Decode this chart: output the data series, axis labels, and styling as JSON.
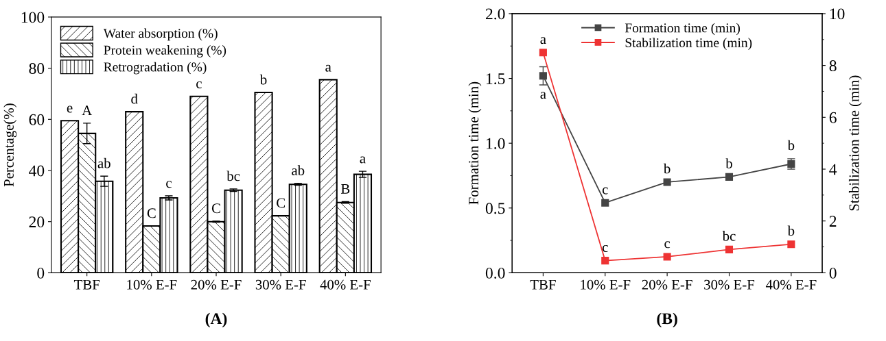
{
  "chart_data": [
    {
      "type": "bar",
      "ylabel": "Percentage(%)",
      "categories": [
        "TBF",
        "10% E-F",
        "20% E-F",
        "30% E-F",
        "40% E-F"
      ],
      "series": [
        {
          "name": "Water absorption (%)",
          "color": "#000000",
          "values": [
            59.5,
            63,
            69,
            70.5,
            75.5
          ],
          "value_labels": [
            "e",
            "d",
            "c",
            "b",
            "a"
          ]
        },
        {
          "name": "Protein weakening (%)",
          "color": "#000000",
          "values": [
            54.5,
            18.3,
            20,
            22.3,
            27.5
          ],
          "errors": [
            4,
            null,
            0.2,
            null,
            0.3
          ],
          "value_labels": [
            "A",
            "C",
            "C",
            "C",
            "B"
          ]
        },
        {
          "name": "Retrogradation (%)",
          "color": "#000000",
          "values": [
            35.8,
            29.3,
            32.3,
            34.6,
            38.5
          ],
          "errors": [
            2,
            0.8,
            0.5,
            0.4,
            1.2
          ],
          "value_labels": [
            "ab",
            "c",
            "bc",
            "ab",
            "a"
          ]
        }
      ],
      "ylim": [
        0,
        100
      ],
      "yticks": [
        0,
        20,
        40,
        60,
        80,
        100
      ],
      "legend": "top left",
      "grid": false,
      "annotations": [
        "(A)"
      ]
    },
    {
      "type": "line",
      "ylabel": "Formation time (min)",
      "y2label": "Stabilization time (min)",
      "categories": [
        "TBF",
        "10% E-F",
        "20% E-F",
        "30% E-F",
        "40% E-F"
      ],
      "series": [
        {
          "name": "Formation time (min)",
          "color": "#444444",
          "values": [
            1.52,
            0.54,
            0.7,
            0.74,
            0.84
          ],
          "errors": [
            0.07,
            null,
            null,
            null,
            0.04
          ],
          "value_labels": [
            "a",
            "c",
            "b",
            "b",
            "b"
          ]
        },
        {
          "name": "Stabilization time (min)",
          "color": "#ee3333",
          "axis": "y2",
          "values": [
            8.5,
            0.47,
            0.62,
            0.9,
            1.1
          ],
          "value_labels": [
            "a",
            "c",
            "c",
            "bc",
            "b"
          ]
        }
      ],
      "ylim": [
        0,
        2.0
      ],
      "yticks": [
        {
          "value": 0,
          "label": "0.0"
        },
        0.5,
        {
          "value": 1,
          "label": "1.0"
        },
        1.5,
        {
          "value": 2,
          "label": "2.0"
        }
      ],
      "y2lim": [
        0,
        10
      ],
      "y2ticks": [
        0,
        2,
        4,
        6,
        8,
        10
      ],
      "marker": "square",
      "line_style": "solid",
      "legend": "top",
      "grid": false,
      "annotations": [
        "(B)"
      ]
    }
  ]
}
